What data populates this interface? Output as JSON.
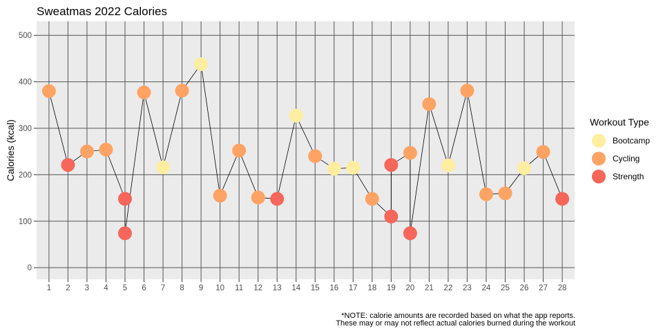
{
  "chart_data": {
    "type": "scatter",
    "title": "Sweatmas 2022 Calories",
    "xlabel": "",
    "ylabel": "Calories (kcal)",
    "x": [
      1,
      2,
      3,
      4,
      5,
      5,
      6,
      7,
      8,
      9,
      10,
      11,
      12,
      13,
      14,
      15,
      16,
      17,
      18,
      19,
      19,
      20,
      20,
      21,
      22,
      23,
      24,
      25,
      26,
      27,
      28
    ],
    "y": [
      380,
      221,
      250,
      254,
      148,
      74,
      377,
      216,
      381,
      438,
      155,
      252,
      151,
      148,
      327,
      240,
      213,
      215,
      148,
      221,
      110,
      247,
      74,
      352,
      220,
      381,
      158,
      160,
      214,
      249,
      148
    ],
    "workout_type": [
      "Cycling",
      "Strength",
      "Cycling",
      "Cycling",
      "Strength",
      "Strength",
      "Cycling",
      "Bootcamp",
      "Cycling",
      "Bootcamp",
      "Cycling",
      "Cycling",
      "Cycling",
      "Strength",
      "Bootcamp",
      "Cycling",
      "Bootcamp",
      "Bootcamp",
      "Cycling",
      "Strength",
      "Strength",
      "Cycling",
      "Strength",
      "Cycling",
      "Bootcamp",
      "Cycling",
      "Cycling",
      "Cycling",
      "Bootcamp",
      "Cycling",
      "Strength"
    ],
    "line_path_order": [
      0,
      1,
      2,
      3,
      4,
      5,
      6,
      7,
      8,
      9,
      10,
      11,
      12,
      13,
      14,
      15,
      16,
      17,
      18,
      20,
      19,
      21,
      22,
      23,
      24,
      25,
      26,
      27,
      28,
      29,
      30
    ],
    "x_ticks": [
      1,
      2,
      3,
      4,
      5,
      6,
      7,
      8,
      9,
      10,
      11,
      12,
      13,
      14,
      15,
      16,
      17,
      18,
      19,
      20,
      21,
      22,
      23,
      24,
      25,
      26,
      27,
      28
    ],
    "y_ticks": [
      0,
      100,
      200,
      300,
      400,
      500
    ],
    "xlim": [
      0.35,
      28.65
    ],
    "ylim": [
      -25,
      530
    ],
    "grid": true,
    "legend": {
      "title": "Workout Type",
      "placement": "right",
      "items": [
        {
          "label": "Bootcamp",
          "color": "#FFEDA0"
        },
        {
          "label": "Cycling",
          "color": "#FEA364"
        },
        {
          "label": "Strength",
          "color": "#F6665A"
        }
      ]
    },
    "note_line1": "*NOTE: calorie amounts are recorded based on what the app reports.",
    "note_line2": "These may or may not reflect actual calories burned during the workout"
  },
  "colors": {
    "panel_bg": "#EBEBEB",
    "grid": "#555555",
    "line": "#000000"
  }
}
